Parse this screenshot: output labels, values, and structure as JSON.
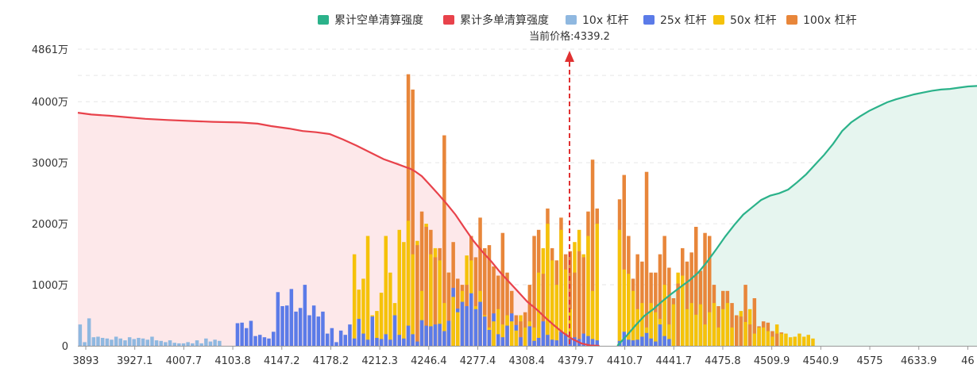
{
  "chart_data": {
    "type": "bar",
    "title": "",
    "xlabel": "",
    "ylabel": "",
    "ylim": [
      0,
      4861
    ],
    "y_ticks": [
      {
        "value": 0,
        "label": "0"
      },
      {
        "value": 1000,
        "label": "1000万"
      },
      {
        "value": 2000,
        "label": "2000万"
      },
      {
        "value": 3000,
        "label": "3000万"
      },
      {
        "value": 4000,
        "label": "4000万"
      },
      {
        "value": 4861,
        "label": "4861万"
      }
    ],
    "x_tick_labels": [
      "3893",
      "3927.1",
      "4007.7",
      "4103.8",
      "4147.2",
      "4178.2",
      "4212.3",
      "4246.4",
      "4277.4",
      "4308.4",
      "4379.7",
      "4410.7",
      "4441.7",
      "4475.8",
      "4509.9",
      "4540.9",
      "4575",
      "4633.9",
      "46"
    ],
    "legend_position": "top-center",
    "grid": true,
    "current_price": {
      "label": "当前价格:4339.2",
      "value": 4339.2
    },
    "colors": {
      "short_line": "#2bb28a",
      "short_fill": "#e6f5ef",
      "long_line": "#e8424b",
      "long_fill": "#fde8ea",
      "lev10": "#8fb8e0",
      "lev25": "#5b7be8",
      "lev50": "#f5c20a",
      "lev100": "#e8863a",
      "marker": "#e03131",
      "grid": "#e6e6e6",
      "axis": "#999999"
    },
    "legend": [
      {
        "name": "累计空单清算强度",
        "color": "#2bb28a"
      },
      {
        "name": "累计多单清算强度",
        "color": "#e8424b"
      },
      {
        "name": "10x 杠杆",
        "color": "#8fb8e0"
      },
      {
        "name": "25x 杠杆",
        "color": "#5b7be8"
      },
      {
        "name": "50x 杠杆",
        "color": "#f5c20a"
      },
      {
        "name": "100x 杠杆",
        "color": "#e8863a"
      }
    ],
    "series": [
      {
        "name": "累计多单清算强度",
        "type": "area",
        "points": [
          [
            0,
            3820
          ],
          [
            6,
            3790
          ],
          [
            14,
            3770
          ],
          [
            22,
            3745
          ],
          [
            30,
            3720
          ],
          [
            40,
            3700
          ],
          [
            50,
            3685
          ],
          [
            60,
            3670
          ],
          [
            72,
            3660
          ],
          [
            80,
            3640
          ],
          [
            86,
            3600
          ],
          [
            94,
            3560
          ],
          [
            100,
            3520
          ],
          [
            106,
            3500
          ],
          [
            112,
            3470
          ],
          [
            118,
            3380
          ],
          [
            124,
            3280
          ],
          [
            130,
            3170
          ],
          [
            136,
            3060
          ],
          [
            142,
            2980
          ],
          [
            148,
            2900
          ],
          [
            150,
            2860
          ],
          [
            153,
            2780
          ],
          [
            156,
            2660
          ],
          [
            160,
            2500
          ],
          [
            164,
            2330
          ],
          [
            168,
            2150
          ],
          [
            172,
            1930
          ],
          [
            176,
            1720
          ],
          [
            180,
            1540
          ],
          [
            184,
            1380
          ],
          [
            188,
            1200
          ],
          [
            192,
            1040
          ],
          [
            196,
            880
          ],
          [
            200,
            720
          ],
          [
            204,
            600
          ],
          [
            208,
            460
          ],
          [
            212,
            330
          ],
          [
            216,
            210
          ],
          [
            220,
            110
          ],
          [
            224,
            40
          ],
          [
            228,
            5
          ],
          [
            232,
            0
          ]
        ]
      },
      {
        "name": "累计空单清算强度",
        "type": "area",
        "points": [
          [
            240,
            0
          ],
          [
            244,
            160
          ],
          [
            248,
            330
          ],
          [
            252,
            490
          ],
          [
            256,
            600
          ],
          [
            260,
            730
          ],
          [
            264,
            850
          ],
          [
            268,
            960
          ],
          [
            272,
            1070
          ],
          [
            276,
            1200
          ],
          [
            280,
            1380
          ],
          [
            284,
            1580
          ],
          [
            288,
            1790
          ],
          [
            292,
            1980
          ],
          [
            296,
            2150
          ],
          [
            300,
            2270
          ],
          [
            304,
            2390
          ],
          [
            308,
            2460
          ],
          [
            312,
            2500
          ],
          [
            316,
            2560
          ],
          [
            320,
            2680
          ],
          [
            324,
            2810
          ],
          [
            328,
            2970
          ],
          [
            332,
            3130
          ],
          [
            336,
            3310
          ],
          [
            340,
            3520
          ],
          [
            344,
            3660
          ],
          [
            348,
            3760
          ],
          [
            352,
            3850
          ],
          [
            356,
            3920
          ],
          [
            360,
            3990
          ],
          [
            364,
            4040
          ],
          [
            368,
            4080
          ],
          [
            372,
            4120
          ],
          [
            376,
            4150
          ],
          [
            380,
            4180
          ],
          [
            384,
            4200
          ],
          [
            388,
            4210
          ],
          [
            392,
            4230
          ],
          [
            396,
            4250
          ],
          [
            401,
            4260
          ]
        ]
      },
      {
        "name": "10x 杠杆",
        "values": [
          350,
          60,
          450,
          140,
          150,
          130,
          120,
          100,
          150,
          120,
          90,
          140,
          110,
          130,
          120,
          100,
          150,
          90,
          80,
          60,
          90,
          50,
          40,
          40,
          60,
          40,
          90,
          40,
          120,
          70,
          100,
          80
        ]
      },
      {
        "name": "25x 杠杆",
        "values": [
          370,
          380,
          290,
          410,
          160,
          180,
          140,
          120,
          230,
          880,
          650,
          660,
          930,
          560,
          620,
          1000,
          500,
          660,
          480,
          560,
          200,
          290,
          60,
          250,
          180,
          350,
          120,
          440,
          200,
          100,
          480,
          130,
          110,
          190,
          100,
          500,
          180,
          120,
          330,
          190,
          70,
          420,
          330,
          320,
          350,
          360,
          240,
          410,
          950,
          610,
          720,
          650,
          860,
          600,
          720,
          480,
          260,
          530,
          190,
          140,
          330,
          530,
          340,
          140,
          300,
          320,
          80,
          130,
          400,
          180,
          100,
          90,
          230,
          200,
          120,
          140,
          110,
          200,
          160,
          110,
          90,
          80,
          230,
          100,
          90,
          100,
          150,
          210,
          120,
          70,
          350,
          160,
          110
        ]
      },
      {
        "name": "50x 杠杆",
        "values": [
          1500,
          920,
          1100,
          1800,
          500,
          570,
          870,
          1800,
          1200,
          700,
          1900,
          1700,
          2050,
          1500,
          1720,
          900,
          2000,
          1500,
          1600,
          1400,
          700,
          1200,
          800,
          550,
          900,
          1480,
          1400,
          650,
          900,
          500,
          300,
          400,
          600,
          350,
          500,
          400,
          250,
          500,
          300,
          400,
          300,
          1200,
          1600,
          2000,
          1400,
          1000,
          1900,
          1250,
          600,
          1700,
          1900,
          1500,
          1800,
          900,
          2000,
          1900,
          1250,
          1180,
          900,
          600,
          700,
          300,
          700,
          550,
          440,
          1000,
          350,
          680,
          1200,
          1150,
          600,
          700,
          510,
          680,
          350,
          550,
          700,
          300,
          600,
          700,
          300,
          500,
          570,
          390,
          600,
          200,
          300,
          300,
          240,
          150,
          350,
          200,
          200,
          140,
          150,
          200,
          150,
          180,
          120
        ]
      },
      {
        "name": "100x 杠杆",
        "values": [
          4450,
          4200,
          1650,
          2200,
          1950,
          1900,
          1450,
          1600,
          3450,
          1200,
          1700,
          1100,
          1000,
          1000,
          1800,
          1450,
          2100,
          1600,
          1650,
          1300,
          1150,
          1850,
          1200,
          900,
          500,
          400,
          550,
          1000,
          1800,
          1900,
          1180,
          2250,
          1600,
          1400,
          2100,
          1500,
          1550,
          1200,
          1550,
          1450,
          2200,
          3050,
          2250,
          2400,
          2800,
          1800,
          1100,
          1500,
          1380,
          2850,
          1200,
          1200,
          1500,
          1800,
          1280,
          780,
          1020,
          1600,
          1380,
          1530,
          1950,
          1230,
          1850,
          1800,
          1000,
          650,
          900,
          900,
          700,
          500,
          480,
          1000,
          350,
          780,
          320,
          400,
          380,
          240,
          200,
          220
        ]
      }
    ]
  }
}
